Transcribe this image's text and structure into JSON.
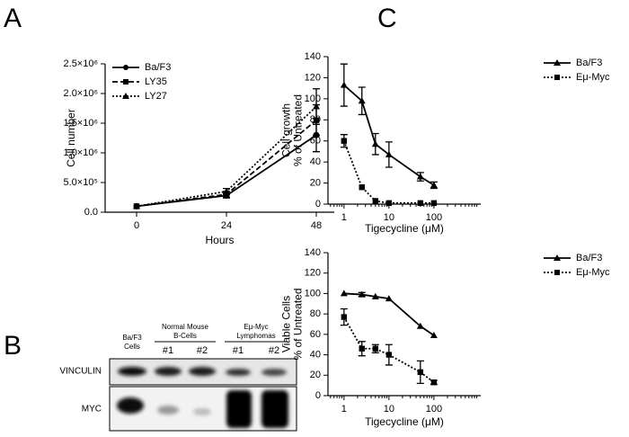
{
  "panel_labels": [
    "A",
    "B",
    "C"
  ],
  "chart_data": [
    {
      "type": "line",
      "xlabel": "Hours",
      "ylabel": [
        "Cell number"
      ],
      "x": [
        0,
        24,
        48
      ],
      "xlim": [
        -8.4,
        52.8
      ],
      "xticks": [
        0,
        24,
        48
      ],
      "ylim": [
        0,
        2500000
      ],
      "yticks": [
        {
          "value": 0,
          "label": "0.0"
        },
        {
          "value": 500000,
          "label": "5.0×10⁵"
        },
        {
          "value": 1000000,
          "label": "1.0×10⁶"
        },
        {
          "value": 1500000,
          "label": "1.5×10⁶"
        },
        {
          "value": 2000000,
          "label": "2.0×10⁶"
        },
        {
          "value": 2500000,
          "label": "2.5×10⁶"
        }
      ],
      "legend": "upper-left",
      "series": [
        {
          "name": "Ba/F3",
          "color": "#000000",
          "dash": "solid",
          "marker": "circle",
          "values": [
            100000,
            280000,
            1300000
          ],
          "errors": [
            null,
            40000,
            280000
          ]
        },
        {
          "name": "LY35",
          "color": "#000000",
          "dash": "dashed",
          "marker": "square",
          "values": [
            100000,
            300000,
            1550000
          ],
          "errors": [
            null,
            50000,
            260000
          ]
        },
        {
          "name": "LY27",
          "color": "#000000",
          "dash": "dotted",
          "marker": "triangle",
          "values": [
            100000,
            350000,
            1780000
          ],
          "errors": [
            null,
            50000,
            300000
          ]
        }
      ]
    },
    {
      "type": "line",
      "xscale": "log",
      "xlabel": "Tigecycline (μM)",
      "ylabel": [
        "Cell growth",
        "% of Untreated"
      ],
      "x": [
        1,
        2.5,
        5,
        10,
        50,
        100
      ],
      "xlim": [
        0.44,
        1100
      ],
      "xticks": [
        1,
        10,
        100
      ],
      "ylim": [
        0,
        140
      ],
      "yticks": [
        0,
        20,
        40,
        60,
        80,
        100,
        120,
        140
      ],
      "legend": "upper-right",
      "series": [
        {
          "name": "Ba/F3",
          "color": "#000000",
          "dash": "solid",
          "marker": "triangle",
          "values": [
            113,
            98,
            57,
            47,
            26,
            18
          ],
          "errors": [
            20,
            13,
            10,
            12,
            4,
            3
          ]
        },
        {
          "name": "Eμ-Myc",
          "color": "#000000",
          "dash": "dotted",
          "marker": "square",
          "values": [
            60,
            16,
            3,
            1,
            1,
            1
          ],
          "errors": [
            6,
            null,
            null,
            null,
            null,
            null
          ]
        }
      ]
    },
    {
      "type": "line",
      "xscale": "log",
      "xlabel": "Tigecycline (μM)",
      "ylabel": [
        "Viable Cells",
        "% of Untreated"
      ],
      "x": [
        1,
        2.5,
        5,
        10,
        50,
        100
      ],
      "xlim": [
        0.44,
        1100
      ],
      "xticks": [
        1,
        10,
        100
      ],
      "ylim": [
        0,
        140
      ],
      "yticks": [
        0,
        20,
        40,
        60,
        80,
        100,
        120,
        140
      ],
      "legend": "upper-right",
      "series": [
        {
          "name": "Ba/F3",
          "color": "#000000",
          "dash": "solid",
          "marker": "triangle",
          "values": [
            100,
            99,
            97,
            95,
            68,
            59
          ],
          "errors": [
            null,
            2,
            null,
            null,
            null,
            null
          ]
        },
        {
          "name": "Eμ-Myc",
          "color": "#000000",
          "dash": "dotted",
          "marker": "square",
          "values": [
            77,
            46,
            46,
            40,
            23,
            13
          ],
          "errors": [
            8,
            7,
            4,
            10,
            11,
            2
          ]
        }
      ]
    }
  ],
  "blot": {
    "groups": [
      [
        "Ba/F3",
        "Cells"
      ],
      [
        "Normal Mouse",
        "B-Cells"
      ],
      [
        "Eμ-Myc",
        "Lymphomas"
      ]
    ],
    "lanes": [
      "#1",
      "#2",
      "#1",
      "#2"
    ],
    "rows": [
      "VINCULIN",
      "MYC"
    ]
  }
}
